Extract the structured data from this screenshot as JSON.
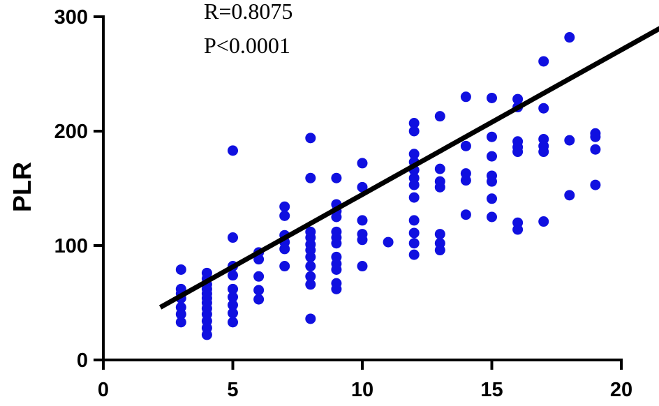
{
  "chart_data": {
    "type": "scatter",
    "ylabel": "PLR",
    "xlabel": "",
    "xlim": [
      0,
      20
    ],
    "ylim": [
      0,
      300
    ],
    "xticks": [
      0,
      5,
      10,
      15,
      20
    ],
    "yticks": [
      0,
      100,
      200,
      300
    ],
    "grid": false,
    "point_color": "#1010e0",
    "line_color": "#000000",
    "annotations": [
      "R=0.8075",
      "P<0.0001"
    ],
    "regression_line": {
      "x": [
        2.2,
        21.5
      ],
      "y": [
        46,
        290
      ]
    },
    "points": [
      [
        3,
        79
      ],
      [
        3,
        62
      ],
      [
        3,
        58
      ],
      [
        3,
        54
      ],
      [
        3,
        46
      ],
      [
        3,
        40
      ],
      [
        3,
        33
      ],
      [
        4,
        76
      ],
      [
        4,
        71
      ],
      [
        4,
        66
      ],
      [
        4,
        62
      ],
      [
        4,
        58
      ],
      [
        4,
        54
      ],
      [
        4,
        50
      ],
      [
        4,
        45
      ],
      [
        4,
        40
      ],
      [
        4,
        34
      ],
      [
        4,
        28
      ],
      [
        4,
        22
      ],
      [
        5,
        183
      ],
      [
        5,
        107
      ],
      [
        5,
        82
      ],
      [
        5,
        74
      ],
      [
        5,
        62
      ],
      [
        5,
        55
      ],
      [
        5,
        48
      ],
      [
        5,
        41
      ],
      [
        5,
        33
      ],
      [
        6,
        94
      ],
      [
        6,
        88
      ],
      [
        6,
        73
      ],
      [
        6,
        61
      ],
      [
        6,
        53
      ],
      [
        7,
        134
      ],
      [
        7,
        126
      ],
      [
        7,
        109
      ],
      [
        7,
        103
      ],
      [
        7,
        97
      ],
      [
        7,
        82
      ],
      [
        8,
        194
      ],
      [
        8,
        159
      ],
      [
        8,
        112
      ],
      [
        8,
        107
      ],
      [
        8,
        101
      ],
      [
        8,
        96
      ],
      [
        8,
        90
      ],
      [
        8,
        82
      ],
      [
        8,
        73
      ],
      [
        8,
        66
      ],
      [
        8,
        36
      ],
      [
        9,
        159
      ],
      [
        9,
        136
      ],
      [
        9,
        130
      ],
      [
        9,
        125
      ],
      [
        9,
        112
      ],
      [
        9,
        107
      ],
      [
        9,
        102
      ],
      [
        9,
        90
      ],
      [
        9,
        84
      ],
      [
        9,
        79
      ],
      [
        9,
        67
      ],
      [
        9,
        62
      ],
      [
        10,
        172
      ],
      [
        10,
        151
      ],
      [
        10,
        122
      ],
      [
        10,
        110
      ],
      [
        10,
        105
      ],
      [
        10,
        82
      ],
      [
        11,
        103
      ],
      [
        12,
        207
      ],
      [
        12,
        200
      ],
      [
        12,
        180
      ],
      [
        12,
        173
      ],
      [
        12,
        166
      ],
      [
        12,
        159
      ],
      [
        12,
        153
      ],
      [
        12,
        142
      ],
      [
        12,
        122
      ],
      [
        12,
        111
      ],
      [
        12,
        102
      ],
      [
        12,
        92
      ],
      [
        13,
        213
      ],
      [
        13,
        167
      ],
      [
        13,
        156
      ],
      [
        13,
        151
      ],
      [
        13,
        110
      ],
      [
        13,
        102
      ],
      [
        13,
        96
      ],
      [
        14,
        230
      ],
      [
        14,
        187
      ],
      [
        14,
        163
      ],
      [
        14,
        157
      ],
      [
        14,
        127
      ],
      [
        15,
        229
      ],
      [
        15,
        195
      ],
      [
        15,
        178
      ],
      [
        15,
        161
      ],
      [
        15,
        156
      ],
      [
        15,
        141
      ],
      [
        15,
        125
      ],
      [
        16,
        228
      ],
      [
        16,
        221
      ],
      [
        16,
        191
      ],
      [
        16,
        186
      ],
      [
        16,
        182
      ],
      [
        16,
        120
      ],
      [
        16,
        114
      ],
      [
        17,
        261
      ],
      [
        17,
        220
      ],
      [
        17,
        193
      ],
      [
        17,
        187
      ],
      [
        17,
        182
      ],
      [
        17,
        121
      ],
      [
        18,
        282
      ],
      [
        18,
        192
      ],
      [
        18,
        144
      ],
      [
        19,
        198
      ],
      [
        19,
        195
      ],
      [
        19,
        184
      ],
      [
        19,
        153
      ]
    ]
  }
}
